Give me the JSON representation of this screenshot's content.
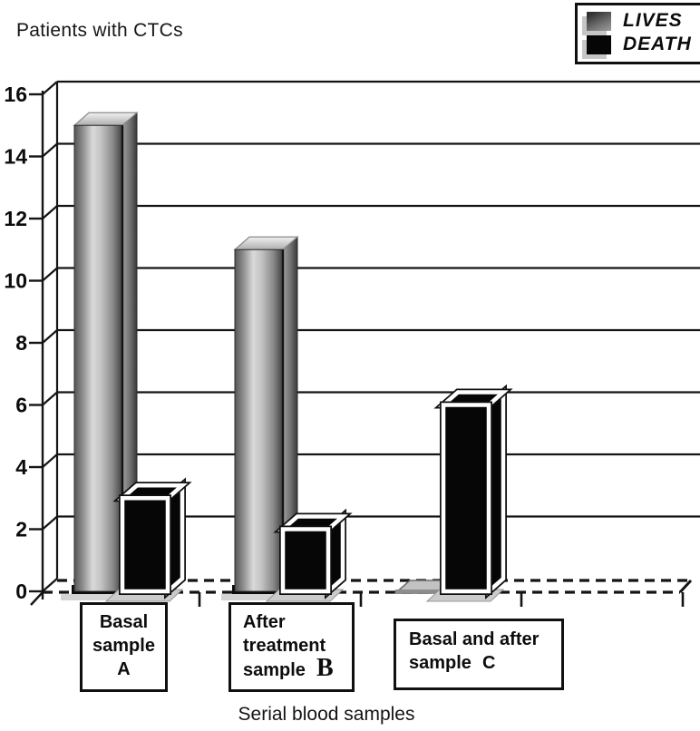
{
  "title": "Patients with CTCs",
  "xlabel": "Serial blood samples",
  "legend": {
    "items": [
      {
        "label": "LIVES",
        "swatch": "gray-gradient"
      },
      {
        "label": "DEATH",
        "swatch": "black"
      }
    ]
  },
  "boxes": [
    {
      "lines": [
        "Basal",
        "sample",
        "A"
      ]
    },
    {
      "lines": [
        "After",
        "treatment"
      ],
      "sample_label": "sample",
      "letter": "B"
    },
    {
      "lines": [
        "Basal and after"
      ],
      "sample_label": "sample",
      "letter": "C"
    }
  ],
  "chart_data": {
    "type": "bar",
    "style": "3d-monochrome",
    "categories": [
      "Basal sample A",
      "After treatment sample B",
      "Basal and after sample C"
    ],
    "series": [
      {
        "name": "LIVES",
        "color": "gray-gradient",
        "values": [
          15,
          11,
          0
        ]
      },
      {
        "name": "DEATH",
        "color": "black",
        "values": [
          3,
          2,
          6
        ]
      }
    ],
    "title": "Patients with CTCs",
    "xlabel": "Serial blood samples",
    "ylabel": "",
    "ylim": [
      0,
      16
    ],
    "yticks": [
      0,
      2,
      4,
      6,
      8,
      10,
      12,
      14,
      16
    ],
    "grid": true,
    "baseline_style": "dashed",
    "legend_position": "top-right"
  },
  "colors": {
    "line": "#141414",
    "lives_dark": "#3f3f3f",
    "lives_light": "#d6d6d6",
    "death": "#060606",
    "shadow": "#c9c9c9",
    "background": "#ffffff"
  }
}
